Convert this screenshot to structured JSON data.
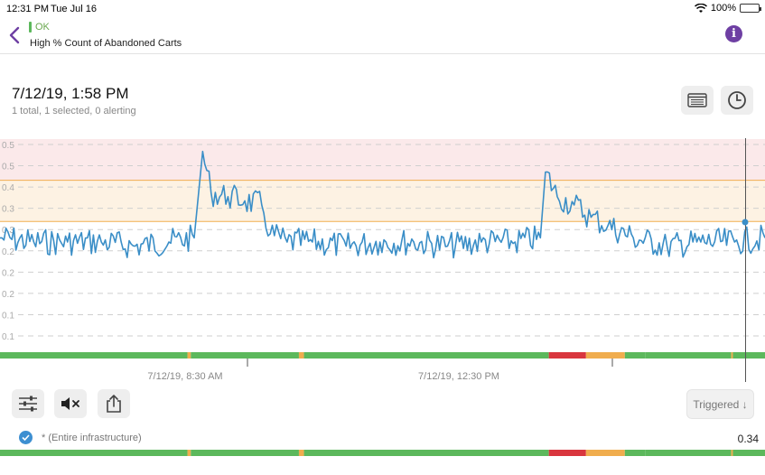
{
  "status_bar": {
    "time": "12:31 PM",
    "date": "Tue Jul 16",
    "battery": "100%"
  },
  "nav": {
    "status_label": "OK",
    "title": "High % Count of Abandoned Carts"
  },
  "header": {
    "datetime": "7/12/19, 1:58 PM",
    "summary": "1 total, 1 selected, 0 alerting"
  },
  "icons": {
    "back": "chevron-left-icon",
    "info": "info-icon",
    "list": "list-icon",
    "history": "clock-icon",
    "filters": "sliders-icon",
    "mute": "mute-icon",
    "share": "share-icon",
    "checked": "check-icon"
  },
  "colors": {
    "accent": "#6e3fa3",
    "series": "#3a8ec7",
    "alert_zone": "#fbe9ea",
    "warning_zone": "#fdf2e3",
    "ok": "#5cb85c",
    "warning": "#f0ad4e",
    "alert": "#d9363e"
  },
  "chart_data": {
    "type": "line",
    "y_tick_labels": [
      "0.5",
      "0.5",
      "0.4",
      "0.3",
      "0.3",
      "0.2",
      "0.2",
      "0.2",
      "0.1",
      "0.1"
    ],
    "x_tick_labels": [
      "7/12/19, 8:30 AM",
      "7/12/19, 12:30 PM"
    ],
    "thresholds": {
      "alert": 0.45,
      "warning": 0.35
    },
    "ylim": [
      0.05,
      0.55
    ],
    "x_range": [
      "06:25",
      "13:58"
    ],
    "state_timeline": [
      {
        "start": "06:25",
        "end": "08:16",
        "state": "ok"
      },
      {
        "start": "08:16",
        "end": "08:18",
        "state": "warning"
      },
      {
        "start": "08:18",
        "end": "09:22",
        "state": "ok"
      },
      {
        "start": "09:22",
        "end": "09:25",
        "state": "warning"
      },
      {
        "start": "09:25",
        "end": "11:50",
        "state": "ok"
      },
      {
        "start": "11:50",
        "end": "12:12",
        "state": "alert"
      },
      {
        "start": "12:12",
        "end": "12:35",
        "state": "warning"
      },
      {
        "start": "12:35",
        "end": "12:47",
        "state": "ok"
      },
      {
        "start": "12:47",
        "end": "13:38",
        "state": "ok"
      },
      {
        "start": "13:38",
        "end": "13:39",
        "state": "warning"
      },
      {
        "start": "13:39",
        "end": "13:58",
        "state": "ok"
      }
    ],
    "series": [
      {
        "x": [
          "06:25",
          "06:45",
          "07:05",
          "07:25",
          "07:45",
          "08:05",
          "08:20",
          "08:25",
          "08:30",
          "08:40",
          "08:50",
          "09:00",
          "09:05",
          "09:15",
          "09:30",
          "09:50",
          "10:10",
          "10:30",
          "10:50",
          "11:10",
          "11:30",
          "11:45",
          "11:48",
          "11:55",
          "12:05",
          "12:15",
          "12:25",
          "12:40",
          "13:00",
          "13:20",
          "13:40",
          "13:58"
        ],
        "values": [
          0.31,
          0.3,
          0.3,
          0.3,
          0.29,
          0.3,
          0.31,
          0.52,
          0.42,
          0.41,
          0.4,
          0.39,
          0.32,
          0.3,
          0.3,
          0.29,
          0.3,
          0.3,
          0.29,
          0.3,
          0.3,
          0.31,
          0.47,
          0.41,
          0.39,
          0.36,
          0.34,
          0.31,
          0.29,
          0.3,
          0.3,
          0.31
        ]
      }
    ]
  },
  "controls": {
    "sort_label": "Triggered ↓"
  },
  "group": {
    "label": "* (Entire infrastructure)",
    "value": "0.34"
  }
}
